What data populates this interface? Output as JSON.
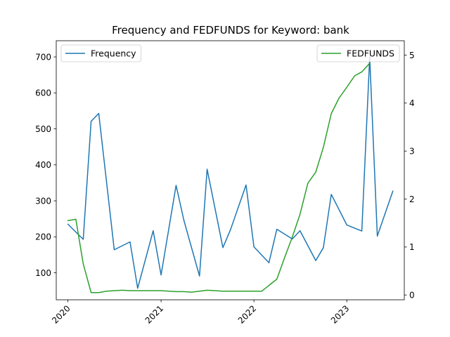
{
  "chart_data": {
    "type": "line",
    "title": "Frequency and FEDFUNDS for Keyword: bank",
    "xlabel": "",
    "ylabel_left": "",
    "ylabel_right": "",
    "x_ticks": [
      "2020",
      "2021",
      "2022",
      "2023"
    ],
    "x_tick_dates": [
      "2020-01-01",
      "2021-01-01",
      "2022-01-01",
      "2023-01-01"
    ],
    "xlim": [
      "2019-11-16",
      "2023-08-15"
    ],
    "ylim_left": [
      25,
      745
    ],
    "ylim_right": [
      -0.1,
      5.3
    ],
    "y_ticks_left": [
      100,
      200,
      300,
      400,
      500,
      600,
      700
    ],
    "y_ticks_right": [
      0,
      1,
      2,
      3,
      4,
      5
    ],
    "grid": false,
    "legend_left": "top-left",
    "legend_right": "top-right",
    "series": [
      {
        "name": "Frequency",
        "axis": "left",
        "color": "#1f77b4",
        "x": [
          "2020-01-01",
          "2020-03-01",
          "2020-04-01",
          "2020-05-01",
          "2020-07-01",
          "2020-09-01",
          "2020-10-01",
          "2020-12-01",
          "2021-01-01",
          "2021-03-01",
          "2021-04-01",
          "2021-06-01",
          "2021-07-01",
          "2021-09-01",
          "2021-10-01",
          "2021-12-01",
          "2022-01-01",
          "2022-03-01",
          "2022-04-01",
          "2022-06-01",
          "2022-07-01",
          "2022-09-01",
          "2022-10-01",
          "2022-11-01",
          "2023-01-01",
          "2023-03-01",
          "2023-04-01",
          "2023-05-01",
          "2023-07-01"
        ],
        "values": [
          235,
          193,
          521,
          543,
          164,
          186,
          57,
          217,
          94,
          343,
          245,
          91,
          388,
          170,
          220,
          344,
          172,
          128,
          221,
          194,
          217,
          134,
          170,
          318,
          233,
          216,
          700,
          202,
          327
        ]
      },
      {
        "name": "FEDFUNDS",
        "axis": "right",
        "color": "#2ca02c",
        "x": [
          "2020-01-01",
          "2020-02-01",
          "2020-03-01",
          "2020-04-01",
          "2020-05-01",
          "2020-06-01",
          "2020-07-01",
          "2020-08-01",
          "2020-09-01",
          "2020-10-01",
          "2020-11-01",
          "2020-12-01",
          "2021-01-01",
          "2021-02-01",
          "2021-03-01",
          "2021-04-01",
          "2021-05-01",
          "2021-06-01",
          "2021-07-01",
          "2021-08-01",
          "2021-09-01",
          "2021-10-01",
          "2021-11-01",
          "2021-12-01",
          "2022-01-01",
          "2022-02-01",
          "2022-03-01",
          "2022-04-01",
          "2022-05-01",
          "2022-06-01",
          "2022-07-01",
          "2022-08-01",
          "2022-09-01",
          "2022-10-01",
          "2022-11-01",
          "2022-12-01",
          "2023-01-01",
          "2023-02-01",
          "2023-03-01",
          "2023-04-01"
        ],
        "values": [
          1.55,
          1.58,
          0.65,
          0.05,
          0.05,
          0.08,
          0.09,
          0.1,
          0.09,
          0.09,
          0.09,
          0.09,
          0.09,
          0.08,
          0.07,
          0.07,
          0.06,
          0.08,
          0.1,
          0.09,
          0.08,
          0.08,
          0.08,
          0.08,
          0.08,
          0.08,
          0.2,
          0.33,
          0.77,
          1.21,
          1.68,
          2.33,
          2.56,
          3.08,
          3.78,
          4.1,
          4.33,
          4.57,
          4.65,
          4.83
        ]
      }
    ]
  }
}
